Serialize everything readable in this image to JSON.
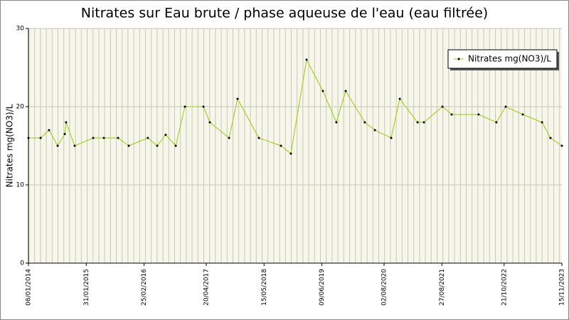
{
  "chart_data": {
    "type": "line",
    "title": "Nitrates sur Eau brute / phase aqueuse de l'eau (eau filtrée)",
    "y_label": "Nitrates mg(NO3)/L",
    "x": [
      "2014-01-06",
      "2014-03-29",
      "2014-05-25",
      "2014-07-22",
      "2014-09-08",
      "2014-09-17",
      "2014-11-14",
      "2015-03-19",
      "2015-05-30",
      "2015-09-03",
      "2015-11-14",
      "2016-03-22",
      "2016-05-24",
      "2016-07-20",
      "2016-09-26",
      "2016-11-27",
      "2017-04-01",
      "2017-05-14",
      "2017-09-21",
      "2017-11-17",
      "2018-04-10",
      "2018-09-06",
      "2018-11-12",
      "2019-02-26",
      "2019-06-16",
      "2019-09-15",
      "2019-11-17",
      "2020-03-25",
      "2020-06-01",
      "2020-09-19",
      "2020-11-16",
      "2021-03-16",
      "2021-04-28",
      "2021-08-31",
      "2021-11-01",
      "2022-05-02",
      "2022-08-30",
      "2022-11-01",
      "2023-02-24",
      "2023-07-04",
      "2023-08-30",
      "2023-11-15"
    ],
    "series": [
      {
        "name": "Nitrates mg(NO3)/L",
        "color": "#99cc00",
        "values": [
          16,
          16,
          17,
          15,
          16.5,
          18,
          15,
          16,
          16,
          16,
          15,
          16,
          15,
          16.4,
          15,
          20,
          20,
          18,
          16,
          21,
          16,
          15,
          14,
          26,
          22,
          18,
          22,
          18,
          17,
          16,
          21,
          18,
          18,
          20,
          19,
          19,
          18,
          20,
          19,
          18,
          16,
          15
        ]
      }
    ],
    "xlim": [
      "2014-01-06",
      "2023-11-15"
    ],
    "xticks": [
      {
        "value": "2014-01-06",
        "label": "06/01/2014"
      },
      {
        "value": "2015-01-31",
        "label": "31/01/2015"
      },
      {
        "value": "2016-02-25",
        "label": "25/02/2016"
      },
      {
        "value": "2017-04-20",
        "label": "20/04/2017"
      },
      {
        "value": "2018-05-15",
        "label": "15/05/2018"
      },
      {
        "value": "2019-06-09",
        "label": "09/06/2019"
      },
      {
        "value": "2020-08-02",
        "label": "02/08/2020"
      },
      {
        "value": "2021-08-27",
        "label": "27/08/2021"
      },
      {
        "value": "2022-10-21",
        "label": "21/10/2022"
      },
      {
        "value": "2023-11-15",
        "label": "15/11/2023"
      }
    ],
    "ylim": [
      0,
      30
    ],
    "yticks": [
      0,
      10,
      20,
      30
    ],
    "grid": true
  }
}
